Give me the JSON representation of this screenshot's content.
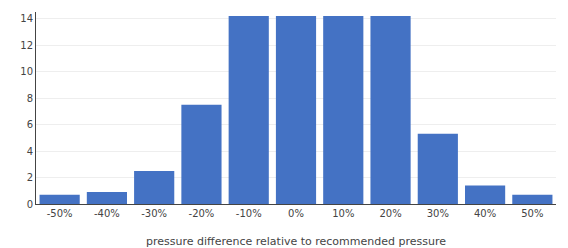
{
  "chart_data": {
    "type": "bar",
    "xlabel": "pressure difference relative to recommended pressure",
    "categories": [
      "-50%",
      "-40%",
      "-30%",
      "-20%",
      "-10%",
      "0%",
      "10%",
      "20%",
      "30%",
      "40%",
      "50%"
    ],
    "values": [
      0.7,
      0.9,
      2.5,
      7.5,
      14.2,
      14.2,
      14.2,
      14.2,
      5.3,
      1.4,
      0.7
    ],
    "color": "#4472C4",
    "ylim": [
      0,
      14.5
    ],
    "yticks": [
      0,
      2,
      4,
      6,
      8,
      10,
      12,
      14
    ],
    "grid": true
  }
}
